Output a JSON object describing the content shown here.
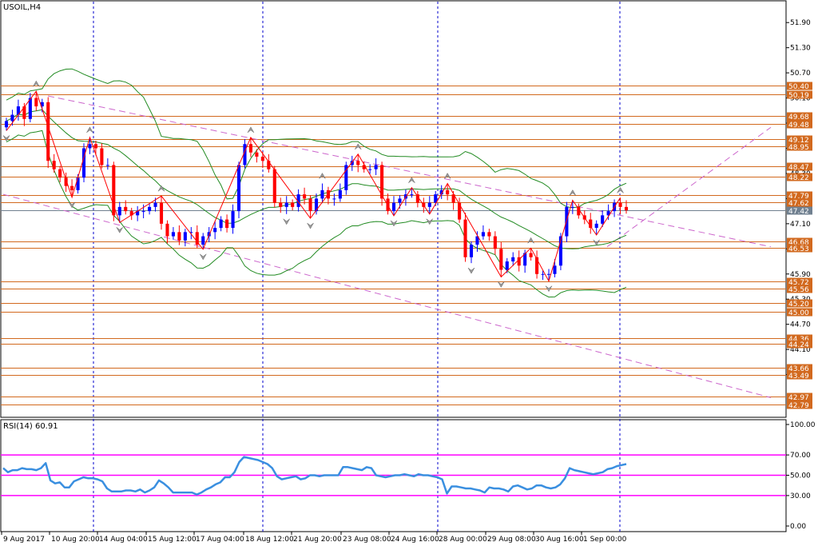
{
  "chart_data": [
    {
      "type": "candlestick",
      "symbol_timeframe": "USOIL,H4",
      "ylim": [
        42.5,
        52.4
      ],
      "y_ticks": [
        "51.90",
        "51.30",
        "50.70",
        "50.10",
        "49.50",
        "48.90",
        "48.30",
        "47.70",
        "47.10",
        "46.50",
        "45.90",
        "45.30",
        "44.70",
        "44.10",
        "43.50"
      ],
      "x_ticks": [
        "9 Aug 2017",
        "10 Aug 20:00",
        "14 Aug 04:00",
        "15 Aug 12:00",
        "17 Aug 04:00",
        "18 Aug 12:00",
        "21 Aug 20:00",
        "23 Aug 08:00",
        "24 Aug 16:00",
        "28 Aug 00:00",
        "29 Aug 08:00",
        "30 Aug 16:00",
        "1 Sep 00:00"
      ],
      "price_levels": [
        "50.40",
        "50.19",
        "49.68",
        "49.48",
        "49.12",
        "48.95",
        "48.47",
        "48.22",
        "47.79",
        "47.62",
        "46.68",
        "46.53",
        "45.72",
        "45.56",
        "45.20",
        "45.00",
        "44.36",
        "44.24",
        "43.66",
        "43.49",
        "42.97",
        "42.79"
      ],
      "current_price": "47.42",
      "close": [
        49.55,
        49.7,
        49.9,
        49.6,
        50.1,
        49.9,
        50.0,
        48.6,
        48.4,
        48.2,
        48.0,
        47.9,
        48.2,
        48.9,
        49.0,
        48.9,
        48.5,
        48.5,
        47.3,
        47.5,
        47.4,
        47.3,
        47.4,
        47.4,
        47.5,
        47.6,
        47.1,
        46.8,
        46.9,
        46.7,
        46.9,
        46.9,
        46.6,
        46.8,
        46.9,
        47.0,
        47.2,
        47.0,
        47.4,
        48.5,
        49.0,
        48.8,
        48.7,
        48.6,
        48.4,
        47.6,
        47.5,
        47.6,
        47.5,
        47.8,
        47.7,
        47.4,
        47.7,
        47.9,
        47.7,
        47.7,
        47.9,
        48.5,
        48.6,
        48.5,
        48.4,
        48.4,
        48.5,
        47.7,
        47.4,
        47.6,
        47.7,
        47.8,
        47.8,
        47.6,
        47.5,
        47.6,
        47.8,
        47.9,
        47.8,
        47.6,
        47.2,
        46.3,
        46.6,
        46.8,
        46.9,
        46.8,
        46.5,
        46.0,
        46.2,
        46.3,
        46.1,
        46.4,
        46.3,
        45.9,
        45.9,
        45.9,
        46.1,
        46.8,
        47.5,
        47.5,
        47.3,
        47.2,
        47.0,
        47.1,
        47.3,
        47.4,
        47.6,
        47.5,
        47.42
      ],
      "rsi": {
        "label": "RSI(14) 60.91",
        "ylim": [
          0,
          100
        ],
        "ticks": [
          "100.00",
          "70.00",
          "50.00",
          "30.00",
          "0.00"
        ],
        "levels": [
          70,
          50,
          30
        ],
        "values": [
          57,
          53,
          55,
          55,
          57,
          56,
          56,
          55,
          57,
          62,
          45,
          42,
          43,
          38,
          38,
          44,
          46,
          48,
          47,
          47,
          46,
          44,
          37,
          34,
          34,
          34,
          35,
          35,
          34,
          36,
          33,
          35,
          38,
          45,
          42,
          38,
          33,
          33,
          33,
          33,
          33,
          31,
          33,
          36,
          38,
          41,
          43,
          48,
          48,
          53,
          63,
          68,
          67,
          66,
          65,
          63,
          61,
          57,
          49,
          46,
          47,
          48,
          49,
          46,
          47,
          50,
          50,
          49,
          50,
          50,
          50,
          50,
          58,
          58,
          57,
          56,
          55,
          58,
          57,
          50,
          49,
          48,
          49,
          50,
          50,
          51,
          50,
          49,
          51,
          50,
          50,
          49,
          48,
          46,
          32,
          39,
          39,
          38,
          37,
          37,
          36,
          35,
          33,
          38,
          37,
          37,
          36,
          34,
          39,
          40,
          38,
          36,
          37,
          40,
          40,
          38,
          37,
          38,
          41,
          47,
          57,
          55,
          54,
          53,
          52,
          51,
          52,
          53,
          56,
          57,
          59,
          60,
          61
        ]
      }
    }
  ],
  "colors": {
    "bull_candle": "#0000ff",
    "bear_candle": "#ff0000",
    "bands": "#228b22",
    "zigzag": "#ff0000",
    "channel": "#cc66cc",
    "levels": "#d2691e",
    "rsi_line": "#3a8fe0",
    "rsi_levels": "#ff00ff",
    "grid_vertical": "#0000cc",
    "label_bg": "#d2691e",
    "current_bg": "#708090"
  }
}
